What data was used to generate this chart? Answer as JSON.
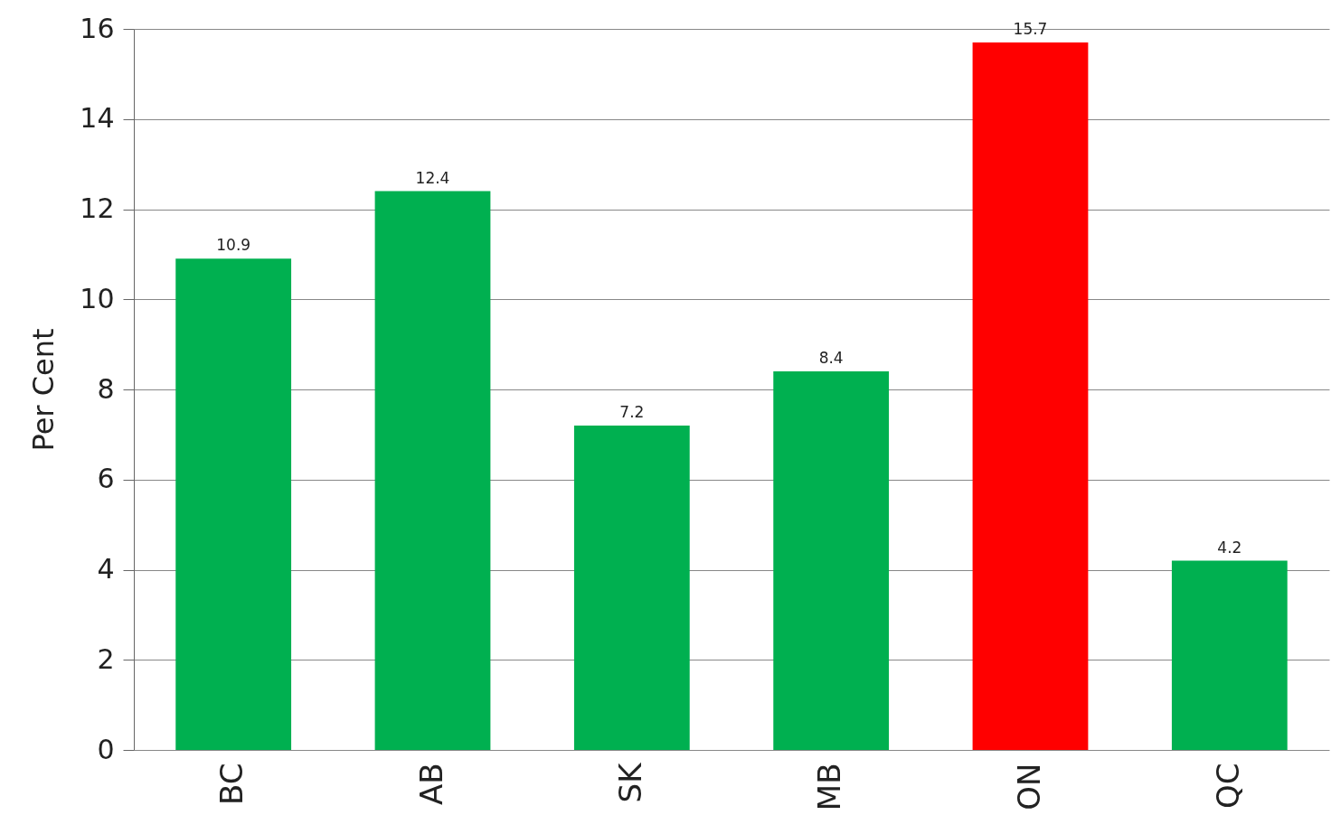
{
  "chart_data": {
    "type": "bar",
    "ylabel": "Per Cent",
    "categories": [
      "BC",
      "AB",
      "SK",
      "MB",
      "ON",
      "QC"
    ],
    "values": [
      10.9,
      12.4,
      7.2,
      8.4,
      15.7,
      4.2
    ],
    "colors": [
      "#00b050",
      "#00b050",
      "#00b050",
      "#00b050",
      "#ff0000",
      "#00b050"
    ],
    "ylim": [
      0,
      16
    ],
    "yticks": [
      0,
      2,
      4,
      6,
      8,
      10,
      12,
      14,
      16
    ],
    "grid": "y",
    "data_labels": true
  }
}
